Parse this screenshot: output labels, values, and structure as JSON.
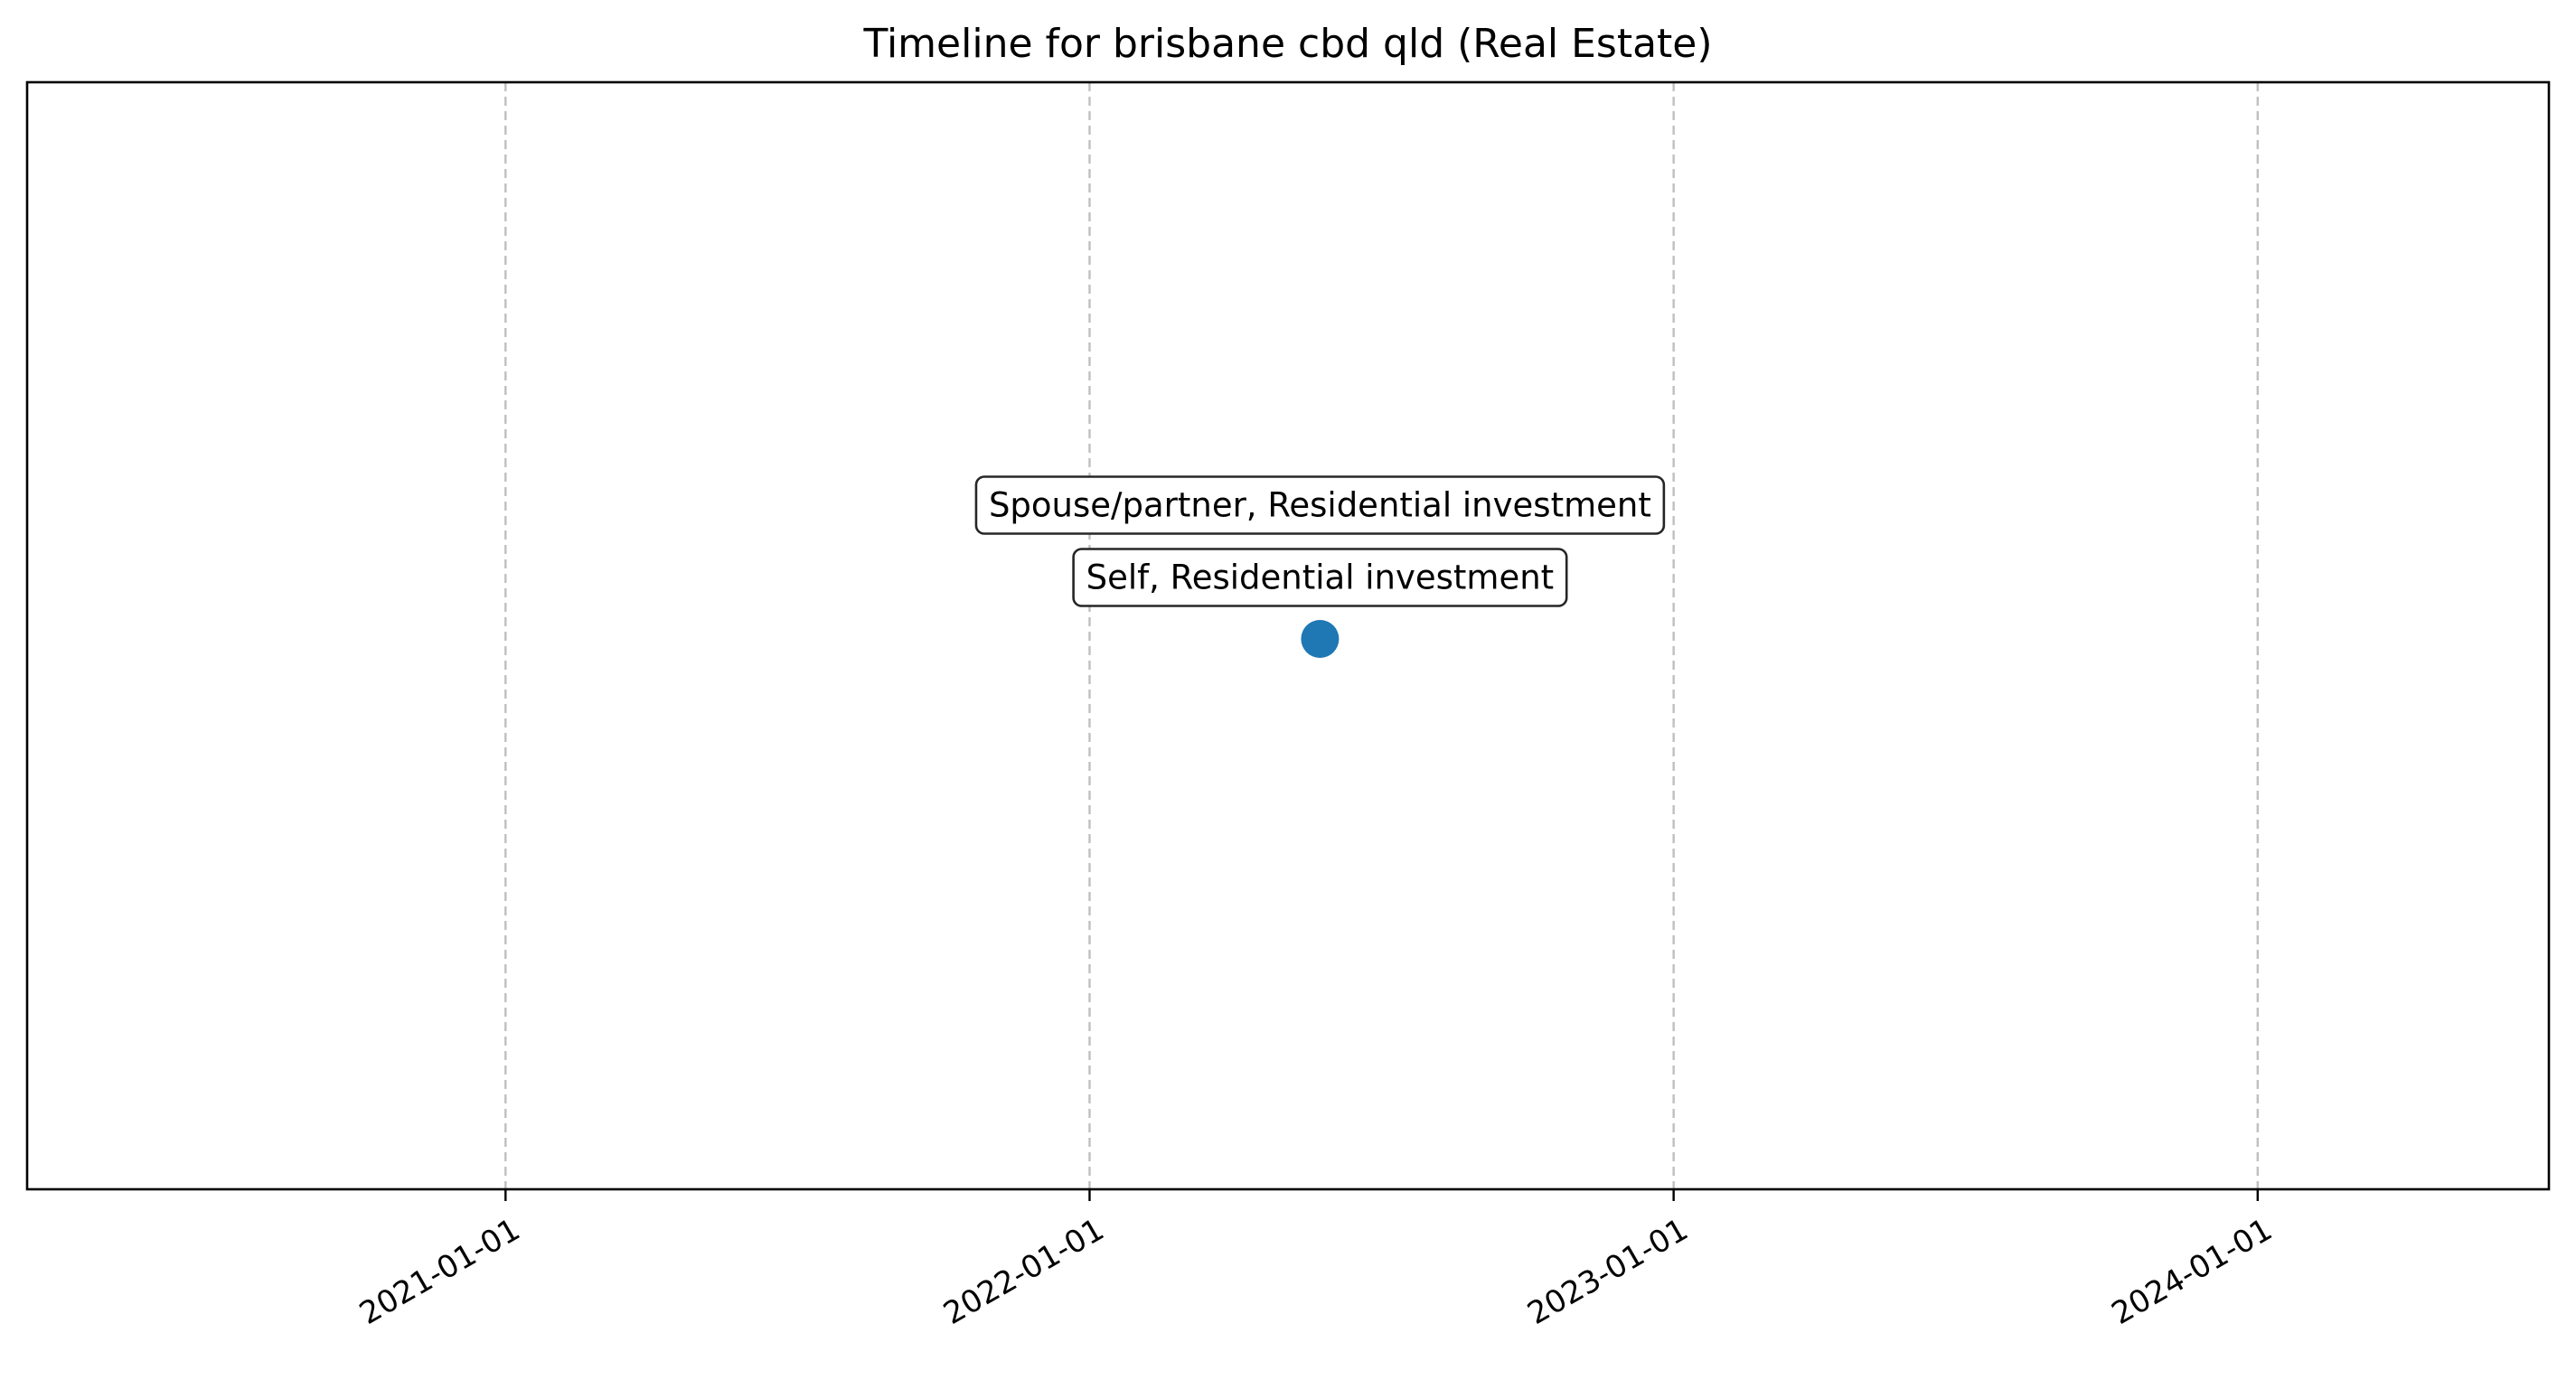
{
  "chart_data": {
    "type": "scatter",
    "title": "Timeline for brisbane cbd qld (Real Estate)",
    "xlabel": "",
    "ylabel": "",
    "x_axis_type": "date",
    "xlim": [
      "2020-03-08",
      "2024-07-01"
    ],
    "xticks": [
      "2021-01-01",
      "2022-01-01",
      "2023-01-01",
      "2024-01-01"
    ],
    "tick_labels": [
      "2021-01-01",
      "2022-01-01",
      "2023-01-01",
      "2024-01-01"
    ],
    "grid": "x-axis dashed vertical lines",
    "y_ticks_shown": false,
    "points": [
      {
        "x": "2022-05-25",
        "y": 0
      }
    ],
    "annotations": [
      {
        "text": "Self, Residential investment",
        "x": "2022-05-25",
        "y": 0
      },
      {
        "text": "Spouse/partner, Residential investment",
        "x": "2022-05-25",
        "y": 0
      }
    ],
    "colors": {
      "marker": "#1f77b4",
      "grid": "#bfbfbf",
      "axes": "#000000",
      "annotation_border": "#262626"
    }
  }
}
